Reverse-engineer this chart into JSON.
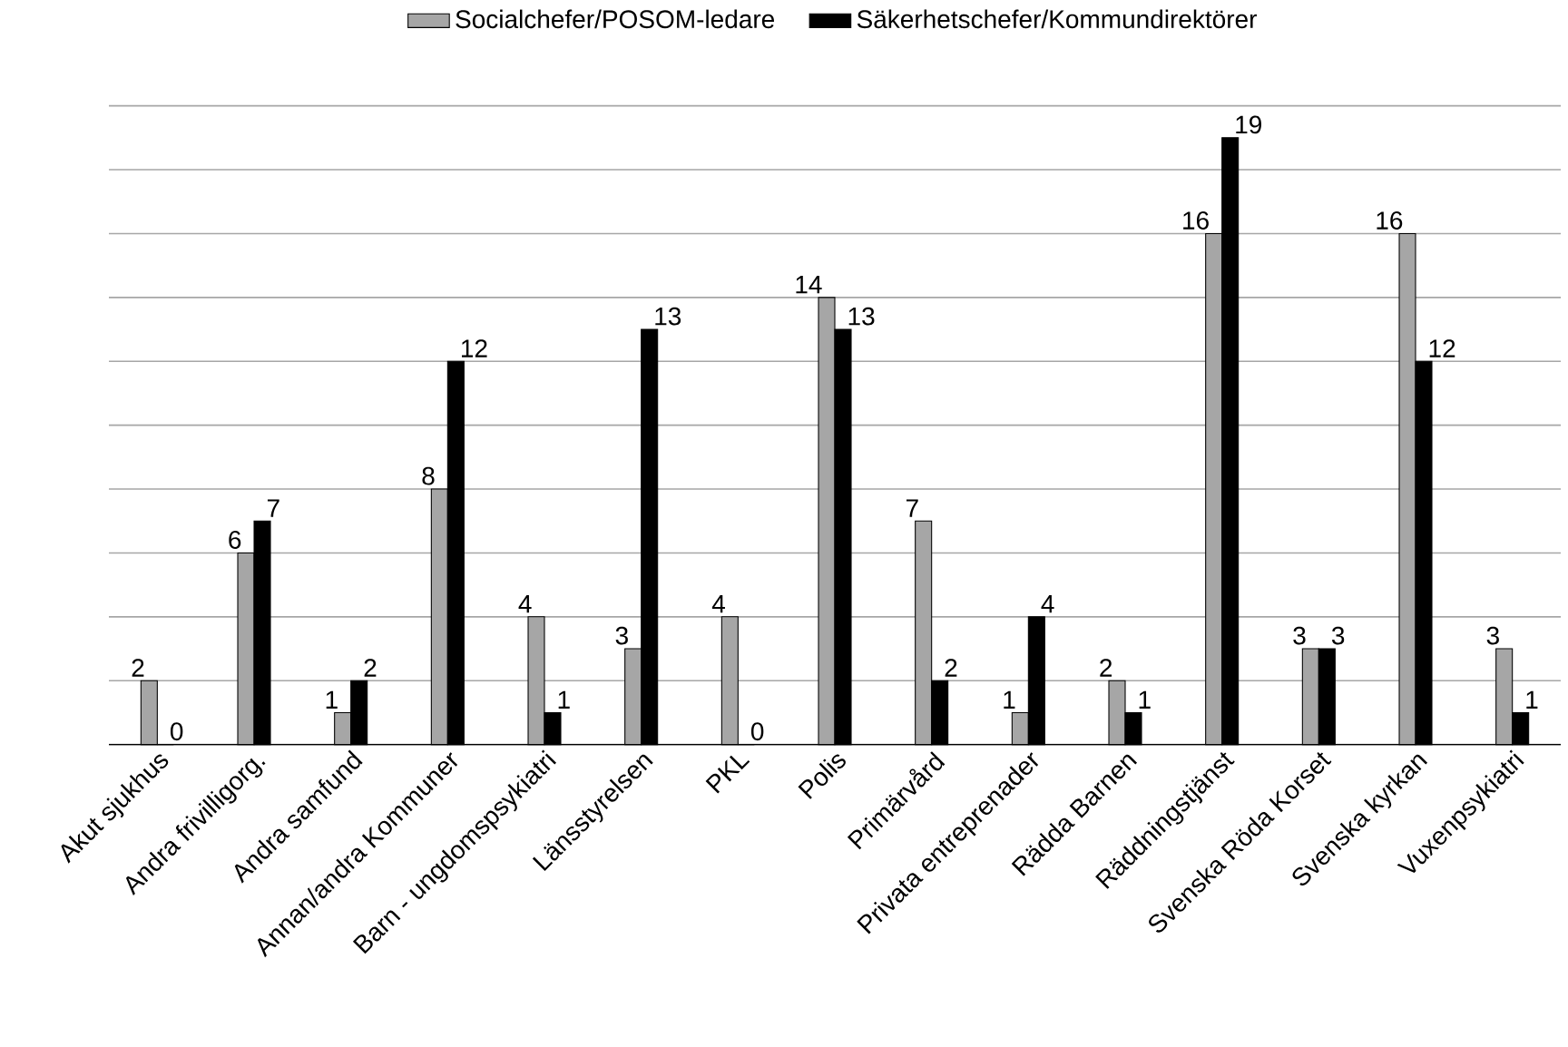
{
  "chart_data": {
    "type": "bar",
    "categories": [
      "Akut sjukhus",
      "Andra frivilligorg.",
      "Andra samfund",
      "Annan/andra Kommuner",
      "Barn - ungdomspsykiatri",
      "Länsstyrelsen",
      "PKL",
      "Polis",
      "Primärvård",
      "Privata entreprenader",
      "Rädda Barnen",
      "Räddningstjänst",
      "Svenska Röda Korset",
      "Svenska kyrkan",
      "Vuxenpsykiatri"
    ],
    "series": [
      {
        "name": "Socialchefer/POSOM-ledare",
        "color": "#a6a6a6",
        "values": [
          2,
          6,
          1,
          8,
          4,
          3,
          4,
          14,
          7,
          1,
          2,
          16,
          3,
          16,
          3
        ]
      },
      {
        "name": "Säkerhetschefer/Kommundirektörer",
        "color": "#000000",
        "values": [
          0,
          7,
          2,
          12,
          1,
          13,
          0,
          13,
          2,
          4,
          1,
          19,
          3,
          12,
          1
        ]
      }
    ],
    "ylim": [
      0,
      20
    ],
    "yticks": [
      {
        "value": 0,
        "label": null
      },
      {
        "value": 2,
        "label": null
      },
      {
        "value": 4,
        "label": null
      },
      {
        "value": 6,
        "label": null
      },
      {
        "value": 8,
        "label": null
      },
      {
        "value": 10,
        "label": null
      },
      {
        "value": 12,
        "label": null
      },
      {
        "value": 14,
        "label": null
      },
      {
        "value": 16,
        "label": null
      },
      {
        "value": 18,
        "label": null
      },
      {
        "value": 20,
        "label": null
      }
    ],
    "tick_labels": "x",
    "grid": "y",
    "legend": "top",
    "data_labels": true
  }
}
